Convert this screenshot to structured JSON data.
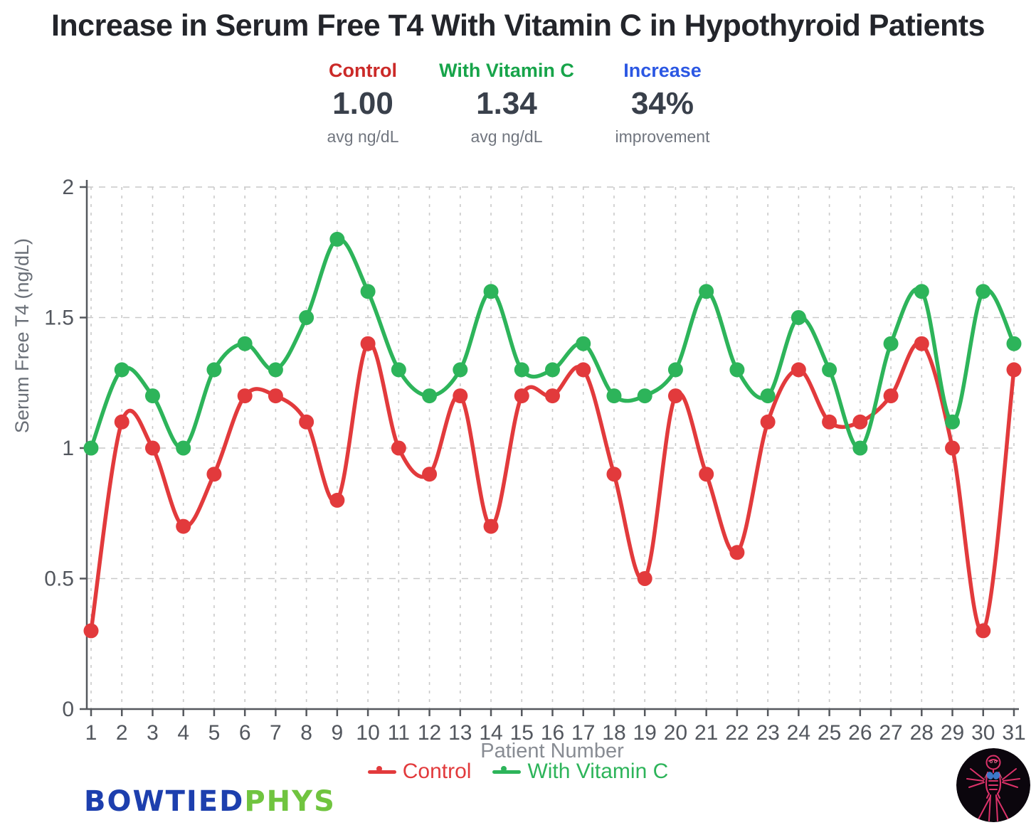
{
  "page_title": "Increase in Serum Free T4 With Vitamin C in Hypothyroid Patients",
  "stats": {
    "items": [
      {
        "label": "Control",
        "value": "1.00",
        "sub": "avg ng/dL",
        "label_color": "#cb2a28"
      },
      {
        "label": "With Vitamin C",
        "value": "1.34",
        "sub": "avg ng/dL",
        "label_color": "#17a44a"
      },
      {
        "label": "Increase",
        "value": "34%",
        "sub": "improvement",
        "label_color": "#2b57e3"
      }
    ]
  },
  "chart_data": {
    "type": "line",
    "title": "Increase in Serum Free T4 With Vitamin C in Hypothyroid Patients",
    "x": [
      1,
      2,
      3,
      4,
      5,
      6,
      7,
      8,
      9,
      10,
      11,
      12,
      13,
      14,
      15,
      16,
      17,
      18,
      19,
      20,
      21,
      22,
      23,
      24,
      25,
      26,
      27,
      28,
      29,
      30,
      31
    ],
    "xlabel": "Patient Number",
    "ylabel": "Serum Free T4 (ng/dL)",
    "ylim": [
      0,
      2
    ],
    "yticks": [
      0,
      0.5,
      1,
      1.5,
      2
    ],
    "grid": true,
    "legend_position": "bottom",
    "marker": "circle",
    "smooth": true,
    "series": [
      {
        "name": "Control",
        "color": "#e23a3c",
        "values": [
          0.3,
          1.1,
          1.0,
          0.7,
          0.9,
          1.2,
          1.2,
          1.1,
          0.8,
          1.4,
          1.0,
          0.9,
          1.2,
          0.7,
          1.2,
          1.2,
          1.3,
          0.9,
          0.5,
          1.2,
          0.9,
          0.6,
          1.1,
          1.3,
          1.1,
          1.1,
          1.2,
          1.4,
          1.0,
          0.3,
          1.3
        ]
      },
      {
        "name": "With Vitamin C",
        "color": "#2db45a",
        "values": [
          1.0,
          1.3,
          1.2,
          1.0,
          1.3,
          1.4,
          1.3,
          1.5,
          1.8,
          1.6,
          1.3,
          1.2,
          1.3,
          1.6,
          1.3,
          1.3,
          1.4,
          1.2,
          1.2,
          1.3,
          1.6,
          1.3,
          1.2,
          1.5,
          1.3,
          1.0,
          1.4,
          1.6,
          1.1,
          1.6,
          1.4
        ]
      }
    ],
    "axis_style": {
      "axis_color": "#55585d",
      "grid_color": "#c9c9c9",
      "tick_label_color": "#53575e",
      "tick_label_size": 30
    }
  },
  "branding": {
    "wordmark_part1": "BOWTIED",
    "wordmark_part2": "PHYS",
    "part1_color": "#1d3fae",
    "part2_color": "#70c43f"
  }
}
